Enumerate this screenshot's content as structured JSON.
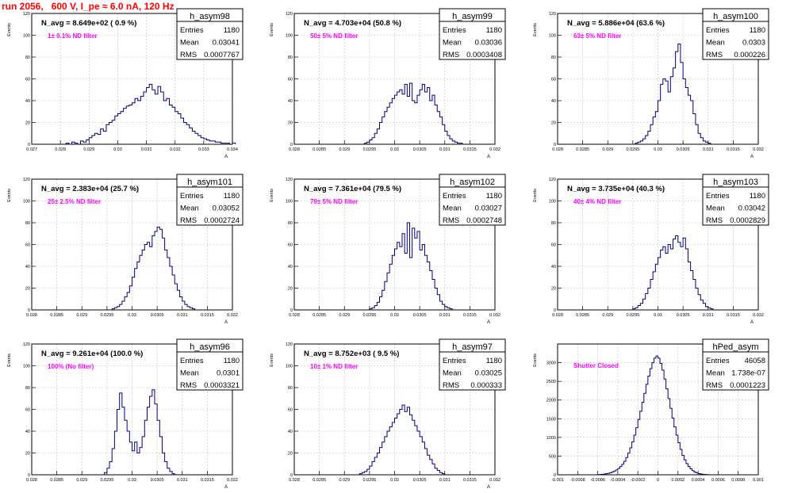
{
  "title": "run 2056,   600 V, I_pe ≈ 6.0 nA, 120 Hz",
  "stat_labels": {
    "entries": "Entries",
    "mean": "Mean",
    "rms": "RMS"
  },
  "colors": {
    "title": "#ff0000",
    "annotation": "#ff00ff",
    "histogram": "#000080",
    "grid": "#c0c0c0",
    "frame": "#000000"
  },
  "chart_data": [
    {
      "type": "bar",
      "name": "h_asym98",
      "navg": "N_avg = 8.649e+02 ( 0.9 %)",
      "filter": "1± 0.1% ND filter",
      "entries": "1180",
      "mean": "0.03041",
      "rms": "0.0007767",
      "ylabel": "Events",
      "xlabel": "A",
      "xlim": [
        0.027,
        0.034
      ],
      "ylim": [
        0,
        120
      ],
      "grid": true,
      "xticks": [
        "0.027",
        "0.028",
        "0.029",
        "0.03",
        "0.031",
        "0.032",
        "0.033",
        "0.034"
      ],
      "yticks": [
        "0",
        "20",
        "40",
        "60",
        "80",
        "100",
        "120"
      ],
      "bins_x0": 0.0282,
      "bin_width": 0.0001,
      "values": [
        1,
        0,
        2,
        1,
        0,
        3,
        2,
        4,
        6,
        8,
        10,
        9,
        14,
        12,
        18,
        20,
        22,
        26,
        28,
        30,
        33,
        35,
        36,
        38,
        42,
        40,
        44,
        48,
        52,
        55,
        50,
        46,
        53,
        48,
        40,
        42,
        36,
        34,
        30,
        28,
        24,
        20,
        18,
        15,
        12,
        10,
        8,
        6,
        5,
        4,
        3,
        3,
        2,
        2,
        1,
        1,
        1,
        0,
        1
      ]
    },
    {
      "type": "bar",
      "name": "h_asym99",
      "navg": "N_avg = 4.703e+04 (50.8 %)",
      "filter": "50± 5% ND filter",
      "entries": "1180",
      "mean": "0.03036",
      "rms": "0.0003408",
      "ylabel": "Events",
      "xlabel": "A",
      "xlim": [
        0.028,
        0.032
      ],
      "ylim": [
        0,
        120
      ],
      "grid": true,
      "xticks": [
        "0.028",
        "0.0285",
        "0.029",
        "0.0295",
        "0.03",
        "0.0305",
        "0.031",
        "0.0315",
        "0.032"
      ],
      "yticks": [
        "0",
        "20",
        "40",
        "60",
        "80",
        "100",
        "120"
      ],
      "bins_x0": 0.0294,
      "bin_width": 5e-05,
      "values": [
        1,
        2,
        4,
        6,
        10,
        14,
        20,
        25,
        30,
        34,
        38,
        42,
        45,
        48,
        50,
        46,
        55,
        44,
        56,
        40,
        38,
        45,
        50,
        55,
        48,
        52,
        40,
        45,
        36,
        30,
        25,
        18,
        12,
        8,
        5,
        3,
        2,
        1,
        1
      ]
    },
    {
      "type": "bar",
      "name": "h_asym100",
      "navg": "N_avg = 5.886e+04 (63.6 %)",
      "filter": "63± 5% ND filter",
      "entries": "1180",
      "mean": "0.0303",
      "rms": "0.000226",
      "ylabel": "Events",
      "xlabel": "A",
      "xlim": [
        0.028,
        0.032
      ],
      "ylim": [
        0,
        120
      ],
      "grid": true,
      "xticks": [
        "0.028",
        "0.0285",
        "0.029",
        "0.0295",
        "0.03",
        "0.0305",
        "0.031",
        "0.0315",
        "0.032"
      ],
      "yticks": [
        "0",
        "20",
        "40",
        "60",
        "80",
        "100",
        "120"
      ],
      "bins_x0": 0.02955,
      "bin_width": 5e-05,
      "values": [
        1,
        2,
        3,
        5,
        8,
        12,
        18,
        25,
        30,
        40,
        55,
        60,
        58,
        48,
        62,
        70,
        85,
        92,
        75,
        60,
        52,
        45,
        40,
        28,
        18,
        10,
        6,
        3,
        2,
        1
      ]
    },
    {
      "type": "bar",
      "name": "h_asym101",
      "navg": "N_avg = 2.383e+04 (25.7 %)",
      "filter": "25± 2.5% ND filter",
      "entries": "1180",
      "mean": "0.03052",
      "rms": "0.0002724",
      "ylabel": "Events",
      "xlabel": "A",
      "xlim": [
        0.028,
        0.032
      ],
      "ylim": [
        0,
        120
      ],
      "grid": true,
      "xticks": [
        "0.028",
        "0.0285",
        "0.029",
        "0.0295",
        "0.03",
        "0.0305",
        "0.031",
        "0.0315",
        "0.032"
      ],
      "yticks": [
        "0",
        "20",
        "40",
        "60",
        "80",
        "100",
        "120"
      ],
      "bins_x0": 0.0296,
      "bin_width": 5e-05,
      "values": [
        1,
        2,
        3,
        5,
        8,
        12,
        16,
        22,
        30,
        38,
        44,
        50,
        55,
        60,
        62,
        58,
        68,
        72,
        76,
        74,
        66,
        55,
        48,
        40,
        32,
        24,
        18,
        12,
        8,
        5,
        3,
        2,
        1
      ]
    },
    {
      "type": "bar",
      "name": "h_asym102",
      "navg": "N_avg = 7.361e+04 (79.5 %)",
      "filter": "79± 5% ND filter",
      "entries": "1180",
      "mean": "0.03027",
      "rms": "0.0002748",
      "ylabel": "Events",
      "xlabel": "A",
      "xlim": [
        0.028,
        0.032
      ],
      "ylim": [
        0,
        120
      ],
      "grid": true,
      "xticks": [
        "0.028",
        "0.0285",
        "0.029",
        "0.0295",
        "0.03",
        "0.0305",
        "0.031",
        "0.0315",
        "0.032"
      ],
      "yticks": [
        "0",
        "20",
        "40",
        "60",
        "80",
        "100",
        "120"
      ],
      "bins_x0": 0.0295,
      "bin_width": 5e-05,
      "values": [
        1,
        2,
        4,
        7,
        12,
        18,
        26,
        34,
        42,
        50,
        56,
        62,
        58,
        70,
        52,
        80,
        48,
        75,
        66,
        72,
        55,
        60,
        50,
        44,
        36,
        28,
        20,
        14,
        8,
        5,
        3,
        2,
        1
      ]
    },
    {
      "type": "bar",
      "name": "h_asym103",
      "navg": "N_avg = 3.735e+04 (40.3 %)",
      "filter": "40± 4% ND filter",
      "entries": "1180",
      "mean": "0.03042",
      "rms": "0.0002829",
      "ylabel": "Events",
      "xlabel": "A",
      "xlim": [
        0.028,
        0.032
      ],
      "ylim": [
        0,
        120
      ],
      "grid": true,
      "xticks": [
        "0.028",
        "0.0285",
        "0.029",
        "0.0295",
        "0.03",
        "0.0305",
        "0.031",
        "0.0315",
        "0.032"
      ],
      "yticks": [
        "0",
        "20",
        "40",
        "60",
        "80",
        "100",
        "120"
      ],
      "bins_x0": 0.0295,
      "bin_width": 5e-05,
      "values": [
        1,
        2,
        4,
        6,
        10,
        15,
        20,
        28,
        35,
        42,
        48,
        55,
        58,
        52,
        60,
        56,
        65,
        68,
        62,
        58,
        66,
        56,
        44,
        36,
        28,
        20,
        14,
        9,
        6,
        3,
        2,
        1
      ]
    },
    {
      "type": "bar",
      "name": "h_asym96",
      "navg": "N_avg = 9.261e+04 (100.0 %)",
      "filter": "100% (No filter)",
      "entries": "1180",
      "mean": "0.0301",
      "rms": "0.0003321",
      "ylabel": "Events",
      "xlabel": "A",
      "xlim": [
        0.028,
        0.032
      ],
      "ylim": [
        0,
        120
      ],
      "grid": true,
      "xticks": [
        "0.028",
        "0.0285",
        "0.029",
        "0.0295",
        "0.03",
        "0.0305",
        "0.031",
        "0.0315",
        "0.032"
      ],
      "yticks": [
        "0",
        "20",
        "40",
        "60",
        "80",
        "100",
        "120"
      ],
      "bins_x0": 0.02945,
      "bin_width": 5e-05,
      "values": [
        2,
        6,
        12,
        24,
        40,
        60,
        75,
        62,
        50,
        40,
        30,
        22,
        30,
        20,
        25,
        35,
        50,
        62,
        72,
        78,
        65,
        50,
        35,
        20,
        12,
        6,
        3,
        1
      ]
    },
    {
      "type": "bar",
      "name": "h_asym97",
      "navg": "N_avg = 8.752e+03 ( 9.5 %)",
      "filter": "10± 1% ND filter",
      "entries": "1180",
      "mean": "0.03025",
      "rms": "0.000333",
      "ylabel": "Events",
      "xlabel": "A",
      "xlim": [
        0.028,
        0.032
      ],
      "ylim": [
        0,
        120
      ],
      "grid": true,
      "xticks": [
        "0.028",
        "0.0285",
        "0.029",
        "0.0295",
        "0.03",
        "0.0305",
        "0.031",
        "0.0315",
        "0.032"
      ],
      "yticks": [
        "0",
        "20",
        "40",
        "60",
        "80",
        "100",
        "120"
      ],
      "bins_x0": 0.0293,
      "bin_width": 5e-05,
      "values": [
        1,
        2,
        3,
        5,
        8,
        12,
        16,
        20,
        25,
        30,
        35,
        40,
        44,
        48,
        52,
        56,
        60,
        64,
        58,
        62,
        55,
        50,
        45,
        40,
        35,
        30,
        24,
        18,
        14,
        10,
        6,
        4,
        2,
        1
      ]
    },
    {
      "type": "bar",
      "name": "hPed_asym",
      "navg": "",
      "filter": "Shutter Closed",
      "entries": "46058",
      "mean": "1.738e-07",
      "rms": "0.0001223",
      "ylabel": "Events",
      "xlabel": "",
      "xlim": [
        -0.001,
        0.001
      ],
      "ylim": [
        0,
        3500
      ],
      "grid": true,
      "xticks": [
        "-0.001",
        "-0.0008",
        "-0.0006",
        "-0.0004",
        "-0.0002",
        "0",
        "0.0002",
        "0.0004",
        "0.0006",
        "0.0008",
        "0.001"
      ],
      "yticks": [
        "0",
        "500",
        "1000",
        "1500",
        "2000",
        "2500",
        "3000"
      ],
      "bins_x0": -0.0006,
      "bin_width": 2e-05,
      "values": [
        5,
        8,
        12,
        20,
        30,
        40,
        55,
        75,
        100,
        130,
        170,
        220,
        280,
        360,
        460,
        580,
        720,
        880,
        1060,
        1260,
        1480,
        1700,
        1940,
        2180,
        2420,
        2640,
        2840,
        3000,
        3120,
        3180,
        3120,
        2980,
        2800,
        2560,
        2300,
        2040,
        1780,
        1520,
        1280,
        1060,
        860,
        680,
        520,
        400,
        300,
        220,
        160,
        110,
        75,
        50,
        32,
        20,
        12,
        8,
        5
      ]
    }
  ]
}
